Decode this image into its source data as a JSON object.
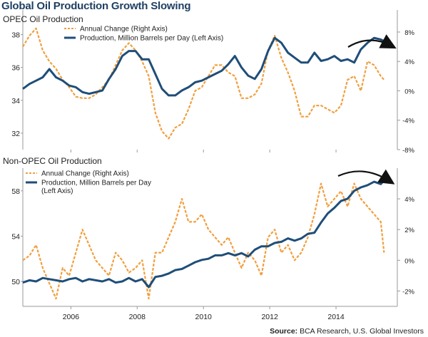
{
  "title": "Global Oil Production Growth Slowing",
  "source_label": "Source:",
  "source_text": "BCA Research, U.S. Global Investors",
  "colors": {
    "production": "#1f4e79",
    "annual": "#f0a040",
    "grid": "#dddddd",
    "axis": "#999999"
  },
  "chart_data": [
    {
      "type": "line",
      "title": "OPEC Oil Production",
      "x_ticks": [
        "2006",
        "2008",
        "2010",
        "2012",
        "2014"
      ],
      "left_axis": {
        "ticks": [
          "32",
          "34",
          "36",
          "38"
        ],
        "ylim": [
          31,
          39.5
        ]
      },
      "right_axis": {
        "ticks": [
          "-8%",
          "-4%",
          "0%",
          "4%",
          "8%"
        ],
        "ylim": [
          -8,
          11
        ]
      },
      "legend": [
        "Annual Change (Right Axis)",
        "Production, Million Barrels per Day (Left Axis)"
      ],
      "xlim": [
        2004.6,
        2015.9
      ],
      "series": [
        {
          "name": "Production, Million Barrels per Day (Left Axis)",
          "axis": "left",
          "x": [
            2004.6,
            2004.8,
            2005.0,
            2005.2,
            2005.4,
            2005.6,
            2005.8,
            2006.0,
            2006.2,
            2006.4,
            2006.6,
            2006.8,
            2007.0,
            2007.2,
            2007.4,
            2007.6,
            2007.8,
            2008.0,
            2008.2,
            2008.4,
            2008.6,
            2008.8,
            2009.0,
            2009.2,
            2009.4,
            2009.6,
            2009.8,
            2010.0,
            2010.2,
            2010.4,
            2010.6,
            2010.8,
            2011.0,
            2011.2,
            2011.4,
            2011.6,
            2011.8,
            2012.0,
            2012.2,
            2012.4,
            2012.6,
            2012.8,
            2013.0,
            2013.2,
            2013.4,
            2013.6,
            2013.8,
            2014.0,
            2014.2,
            2014.4,
            2014.6,
            2014.8,
            2015.0,
            2015.2,
            2015.4,
            2015.5
          ],
          "y": [
            34.7,
            35.0,
            35.2,
            35.4,
            35.9,
            35.4,
            35.2,
            34.9,
            34.8,
            34.5,
            34.4,
            34.5,
            34.6,
            35.3,
            35.9,
            36.7,
            37.0,
            37.0,
            36.5,
            36.5,
            35.6,
            34.7,
            34.3,
            34.3,
            34.6,
            34.8,
            35.1,
            35.2,
            35.4,
            35.6,
            35.8,
            36.2,
            36.7,
            36.0,
            35.5,
            35.3,
            35.9,
            37.0,
            37.8,
            37.5,
            36.9,
            36.6,
            36.3,
            36.3,
            36.9,
            36.4,
            36.5,
            36.7,
            36.4,
            36.5,
            36.3,
            37.1,
            37.5,
            37.8,
            37.7,
            37.6
          ]
        },
        {
          "name": "Annual Change (Right Axis)",
          "axis": "right",
          "x": [
            2004.6,
            2004.8,
            2005.0,
            2005.2,
            2005.4,
            2005.6,
            2005.8,
            2006.0,
            2006.2,
            2006.4,
            2006.6,
            2006.8,
            2007.0,
            2007.2,
            2007.4,
            2007.6,
            2007.8,
            2008.0,
            2008.2,
            2008.4,
            2008.6,
            2008.8,
            2009.0,
            2009.2,
            2009.4,
            2009.6,
            2009.8,
            2010.0,
            2010.2,
            2010.4,
            2010.6,
            2010.8,
            2011.0,
            2011.2,
            2011.4,
            2011.6,
            2011.8,
            2012.0,
            2012.2,
            2012.4,
            2012.6,
            2012.8,
            2013.0,
            2013.2,
            2013.4,
            2013.6,
            2013.8,
            2014.0,
            2014.2,
            2014.4,
            2014.6,
            2014.8,
            2015.0,
            2015.2,
            2015.4,
            2015.5
          ],
          "y": [
            6.0,
            7.5,
            8.5,
            5.5,
            4.0,
            3.0,
            1.5,
            0.5,
            -0.8,
            -1.0,
            -1.0,
            -0.5,
            0.5,
            1.5,
            3.5,
            5.5,
            6.5,
            5.5,
            4.0,
            2.0,
            -3.0,
            -5.5,
            -6.5,
            -5.0,
            -4.5,
            -2.5,
            0.0,
            0.5,
            2.0,
            3.5,
            3.5,
            2.5,
            2.0,
            -1.0,
            -1.0,
            -0.5,
            1.0,
            5.5,
            7.5,
            4.5,
            2.5,
            0.0,
            -3.5,
            -3.5,
            -2.0,
            -2.0,
            -2.5,
            -3.0,
            -2.0,
            1.5,
            2.0,
            0.0,
            4.0,
            3.5,
            2.0,
            1.5
          ]
        }
      ]
    },
    {
      "type": "line",
      "title": "Non-OPEC Oil Production",
      "x_ticks": [
        "2006",
        "2008",
        "2010",
        "2012",
        "2014"
      ],
      "left_axis": {
        "ticks": [
          "50",
          "54",
          "58"
        ],
        "ylim": [
          47.8,
          60
        ]
      },
      "right_axis": {
        "ticks": [
          "-2%",
          "0%",
          "2%",
          "4%"
        ],
        "ylim": [
          -3,
          6
        ]
      },
      "legend": [
        "Annual Change (Right Axis)",
        "Production, Million Barrels per Day (Left Axis)"
      ],
      "xlim": [
        2004.6,
        2015.9
      ],
      "series": [
        {
          "name": "Production, Million Barrels per Day (Left Axis)",
          "axis": "left",
          "x": [
            2004.6,
            2004.8,
            2005.0,
            2005.2,
            2005.4,
            2005.6,
            2005.8,
            2006.0,
            2006.2,
            2006.4,
            2006.6,
            2006.8,
            2007.0,
            2007.2,
            2007.4,
            2007.6,
            2007.8,
            2008.0,
            2008.2,
            2008.4,
            2008.6,
            2008.8,
            2009.0,
            2009.2,
            2009.4,
            2009.6,
            2009.8,
            2010.0,
            2010.2,
            2010.4,
            2010.6,
            2010.8,
            2011.0,
            2011.2,
            2011.4,
            2011.6,
            2011.8,
            2012.0,
            2012.2,
            2012.4,
            2012.6,
            2012.8,
            2013.0,
            2013.2,
            2013.4,
            2013.6,
            2013.8,
            2014.0,
            2014.2,
            2014.4,
            2014.6,
            2014.8,
            2015.0,
            2015.2,
            2015.4,
            2015.5
          ],
          "y": [
            49.9,
            50.1,
            50.0,
            50.3,
            50.2,
            50.1,
            50.0,
            50.2,
            50.3,
            50.0,
            50.2,
            50.1,
            50.0,
            50.2,
            49.9,
            50.0,
            50.3,
            50.0,
            50.2,
            49.5,
            50.4,
            50.5,
            50.7,
            51.0,
            51.1,
            51.4,
            51.7,
            51.9,
            52.0,
            52.3,
            52.3,
            52.5,
            52.3,
            52.5,
            52.2,
            52.8,
            53.1,
            53.1,
            53.4,
            53.5,
            53.8,
            53.6,
            53.8,
            54.2,
            54.3,
            55.2,
            56.0,
            56.5,
            57.1,
            57.3,
            58.0,
            58.3,
            58.5,
            58.8,
            58.6,
            58.9
          ]
        },
        {
          "name": "Annual Change (Right Axis)",
          "axis": "right",
          "x": [
            2004.6,
            2004.8,
            2005.0,
            2005.2,
            2005.4,
            2005.6,
            2005.8,
            2006.0,
            2006.2,
            2006.4,
            2006.6,
            2006.8,
            2007.0,
            2007.2,
            2007.4,
            2007.6,
            2007.8,
            2008.0,
            2008.2,
            2008.4,
            2008.6,
            2008.8,
            2009.0,
            2009.2,
            2009.4,
            2009.6,
            2009.8,
            2010.0,
            2010.2,
            2010.4,
            2010.6,
            2010.8,
            2011.0,
            2011.2,
            2011.4,
            2011.6,
            2011.8,
            2012.0,
            2012.2,
            2012.4,
            2012.6,
            2012.8,
            2013.0,
            2013.2,
            2013.4,
            2013.6,
            2013.8,
            2014.0,
            2014.2,
            2014.4,
            2014.6,
            2014.8,
            2015.0,
            2015.2,
            2015.4,
            2015.5
          ],
          "y": [
            0.0,
            0.3,
            1.0,
            -0.5,
            -1.5,
            -2.5,
            -0.5,
            -1.0,
            0.5,
            2.0,
            1.0,
            0.0,
            -0.5,
            -1.0,
            0.5,
            0.0,
            -0.8,
            -0.5,
            0.0,
            -2.5,
            0.5,
            0.5,
            1.5,
            2.5,
            4.0,
            2.5,
            2.5,
            3.0,
            2.0,
            1.5,
            1.0,
            1.5,
            0.5,
            -0.5,
            0.5,
            0.0,
            -1.0,
            1.5,
            2.0,
            0.5,
            1.0,
            0.0,
            0.5,
            1.5,
            3.0,
            5.0,
            3.5,
            4.0,
            4.5,
            3.5,
            5.0,
            4.0,
            3.5,
            3.0,
            2.5,
            0.5
          ]
        }
      ]
    }
  ]
}
